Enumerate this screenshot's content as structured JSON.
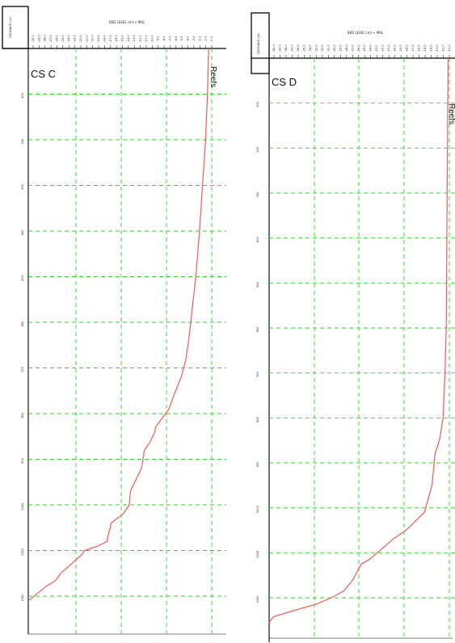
{
  "chart_data": [
    {
      "type": "line",
      "title": "CS C",
      "header_label": "BED LEVEL (m) + MSL",
      "ylabel": "DISTANCE (m)",
      "x_tick_labels": [
        "-30.0",
        "-29.0",
        "-28.0",
        "-27.0",
        "-26.0",
        "-25.0",
        "-24.0",
        "-23.0",
        "-22.0",
        "-21.0",
        "-20.0",
        "-19.0",
        "-18.0",
        "-17.0",
        "-16.0",
        "-15.0",
        "-14.0",
        "-13.0",
        "-12.0",
        "-11.0",
        "-10.0",
        "-9.0",
        "-8.0",
        "-7.0",
        "-6.0",
        "-5.0",
        "-4.0",
        "-3.0",
        "-2.0",
        "-1.0",
        "0.0"
      ],
      "y_tick_labels": [
        "100",
        "200",
        "300",
        "400",
        "500",
        "600",
        "700",
        "800",
        "900",
        "1000",
        "1100",
        "1200"
      ],
      "xlim": [
        -30,
        0
      ],
      "ylim": [
        0,
        1230
      ],
      "grid": true,
      "annotation": "Reefs",
      "series": [
        {
          "color": "#ff5555",
          "x": [
            -0.5,
            -0.7,
            -1.0,
            -1.5,
            -2.0,
            -2.6,
            -3.1,
            -3.6,
            -4.2,
            -5.0,
            -6.2,
            -7.0,
            -9.2,
            -9.3,
            -10.0,
            -11.0,
            -11.5,
            -12.6,
            -13.3,
            -13.5,
            -14.5,
            -16.5,
            -16.6,
            -17.0,
            -17.1,
            -18.6,
            -20.8,
            -21.3,
            -23.0,
            -24.7,
            -25.5,
            -27.2,
            -28.6,
            -30.0
          ],
          "y": [
            0,
            100,
            200,
            300,
            400,
            500,
            560,
            620,
            680,
            720,
            760,
            790,
            830,
            840,
            860,
            880,
            920,
            950,
            970,
            1000,
            1020,
            1040,
            1050,
            1070,
            1080,
            1090,
            1100,
            1110,
            1130,
            1150,
            1165,
            1180,
            1195,
            1210
          ]
        }
      ]
    },
    {
      "type": "line",
      "title": "CS D",
      "header_label": "BED LEVEL (m) + MSL",
      "ylabel": "DISTANCE (m)",
      "x_tick_labels": [
        "-40.0",
        "-39.0",
        "-38.0",
        "-37.0",
        "-36.0",
        "-35.0",
        "-34.0",
        "-33.0",
        "-32.0",
        "-31.0",
        "-30.0",
        "-29.0",
        "-28.0",
        "-27.0",
        "-26.0",
        "-25.0",
        "-24.0",
        "-23.0",
        "-22.0",
        "-21.0",
        "-20.0",
        "-19.0",
        "-18.0",
        "-17.0",
        "-16.0",
        "-15.0",
        "-14.0",
        "-13.0",
        "-12.0",
        "-11.0"
      ],
      "y_tick_labels": [
        "100",
        "200",
        "300",
        "400",
        "500",
        "600",
        "700",
        "800",
        "900",
        "1000",
        "1100",
        "1200"
      ],
      "xlim": [
        -40,
        -11
      ],
      "ylim": [
        0,
        1250
      ],
      "grid": true,
      "annotation": "Reefs",
      "series": [
        {
          "color": "#ff5555",
          "x": [
            -11.2,
            -11.3,
            -11.4,
            -11.5,
            -11.7,
            -12.0,
            -12.6,
            -13.3,
            -13.8,
            -15.0,
            -18.0,
            -20.1,
            -22.6,
            -23.9,
            -25.2,
            -26.5,
            -28.0,
            -30.0,
            -32.6,
            -35.2,
            -37.6,
            -39.3,
            -40.0
          ],
          "y": [
            0,
            200,
            400,
            600,
            700,
            800,
            850,
            880,
            950,
            1010,
            1050,
            1070,
            1100,
            1115,
            1125,
            1160,
            1185,
            1200,
            1215,
            1225,
            1235,
            1242,
            1255
          ]
        }
      ]
    }
  ],
  "colors": {
    "grid": "#22dd22",
    "series": "#ff5555",
    "frame": "#000000"
  }
}
